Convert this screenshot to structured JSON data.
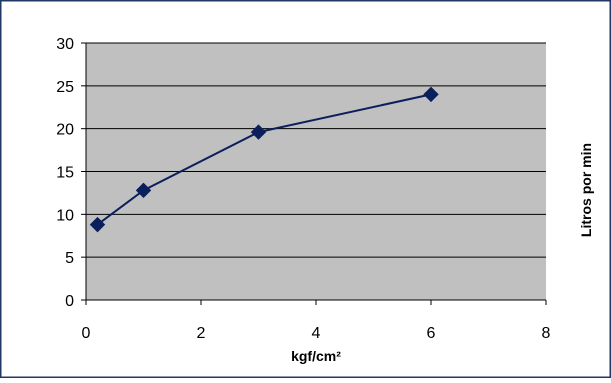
{
  "chart_data": {
    "type": "scatter",
    "mode": "line-with-markers",
    "title": "",
    "xlabel": "kgf/cm²",
    "ylabel": "Litros por min",
    "xlim": [
      0,
      8
    ],
    "ylim": [
      0,
      30
    ],
    "x_ticks": [
      "0",
      "2",
      "4",
      "6",
      "8"
    ],
    "y_ticks": [
      "0",
      "5",
      "10",
      "15",
      "20",
      "25",
      "30"
    ],
    "grid": "horizontal",
    "legend": "none",
    "series": [
      {
        "x": [
          0.2,
          1,
          3,
          6
        ],
        "y": [
          8.8,
          12.8,
          19.6,
          24
        ]
      }
    ],
    "colors": {
      "plot_background": "#c0c0c0",
      "series": "#0b1f5c",
      "frame_border": "#1f3864",
      "axis": "#000000"
    }
  }
}
